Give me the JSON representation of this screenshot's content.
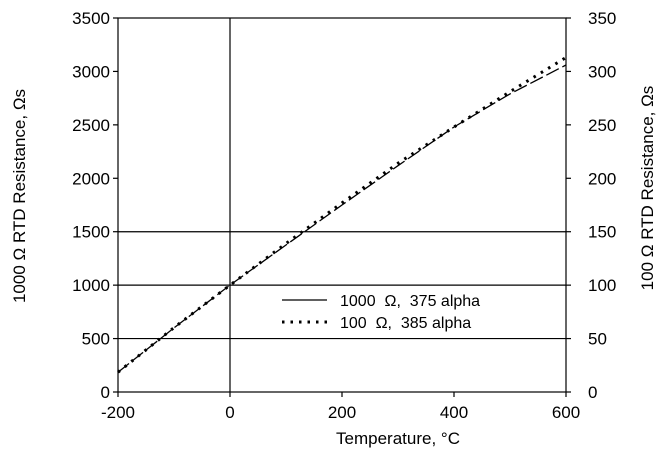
{
  "chart_data": {
    "type": "line",
    "title": "",
    "xlabel": "Temperature, °C",
    "ylabel_left": "1000  Ω  RTD Resistance,  Ωs",
    "ylabel_right": "100  Ω  RTD Resistance,  Ωs",
    "xlim": [
      -200,
      600
    ],
    "ylim_left": [
      0,
      3500
    ],
    "ylim_right": [
      0,
      350
    ],
    "x_ticks": [
      "-200",
      "0",
      "200",
      "400",
      "600"
    ],
    "y_ticks_left": [
      "0",
      "500",
      "1000",
      "1500",
      "2000",
      "2500",
      "3000",
      "3500"
    ],
    "y_ticks_right": [
      "0",
      "50",
      "100",
      "150",
      "200",
      "250",
      "300",
      "350"
    ],
    "horizontal_grid": [
      500,
      1000,
      1500
    ],
    "vertical_grid": [
      0
    ],
    "legend_position": "center-right",
    "series": [
      {
        "name": "1000  Ω,  375 alpha",
        "axis": "left",
        "style": "line",
        "x": [
          -200,
          -100,
          0,
          100,
          200,
          300,
          400,
          500,
          600
        ],
        "y": [
          185,
          600,
          1000,
          1376,
          1750,
          2118,
          2480,
          2790,
          3060
        ]
      },
      {
        "name": "100  Ω,  385 alpha",
        "axis": "right",
        "style": "dotted",
        "x": [
          -200,
          -100,
          0,
          100,
          200,
          300,
          400,
          500,
          600
        ],
        "y": [
          18.5,
          60.3,
          100,
          139,
          177,
          214,
          248,
          281,
          313
        ]
      }
    ]
  }
}
